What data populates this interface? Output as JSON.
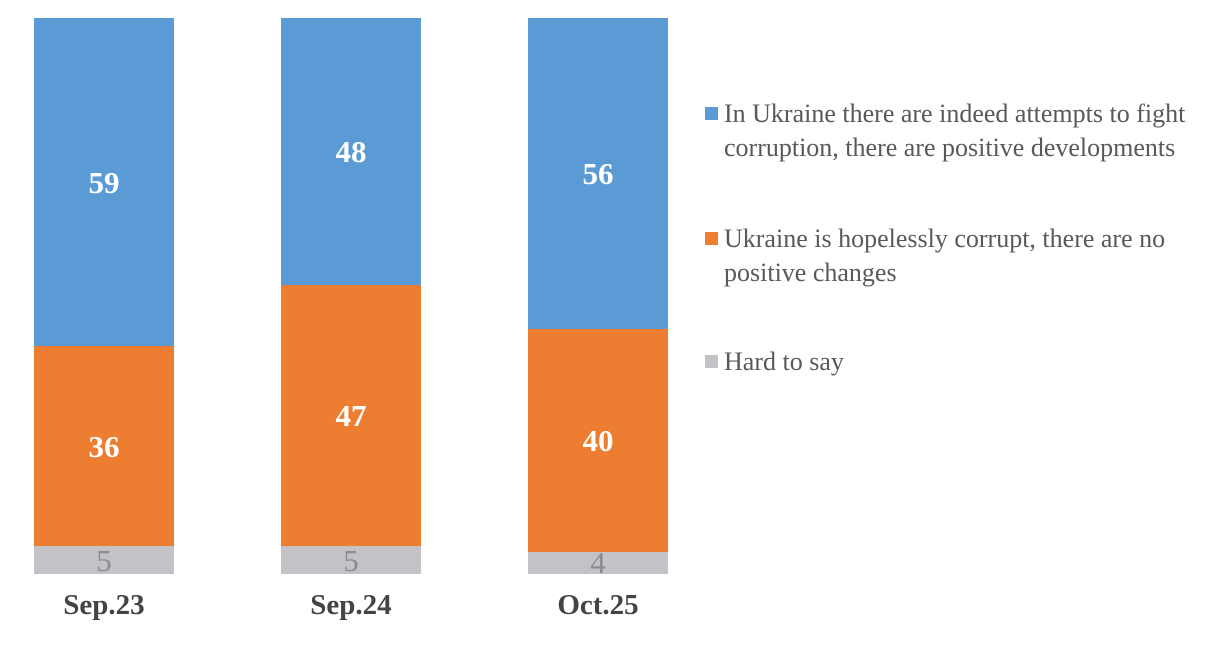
{
  "colors": {
    "background": "#FFFFFF",
    "blue": "#5B9BD5",
    "orange": "#ED7D31",
    "gray": "#C3C2C6",
    "white_label": "#FFFFFF",
    "gray_label": "#8C8B8F",
    "legend_text": "#595959",
    "axis_text": "#444444"
  },
  "chart_data": {
    "type": "bar",
    "variant": "stacked-100-percent-column",
    "title": "",
    "xlabel": "",
    "ylabel": "",
    "ylim": [
      0,
      100
    ],
    "grid": false,
    "legend_position": "right",
    "data_labels": true,
    "categories": [
      "Sep.23",
      "Sep.24",
      "Oct.25"
    ],
    "series": [
      {
        "name": "In Ukraine there are indeed attempts to fight corruption, there are positive developments",
        "values": [
          59,
          48,
          56
        ],
        "color": "#5B9BD5",
        "label_color": "#FFFFFF"
      },
      {
        "name": "Ukraine is hopelessly corrupt, there are no positive changes",
        "values": [
          36,
          47,
          40
        ],
        "color": "#ED7D31",
        "label_color": "#FFFFFF"
      },
      {
        "name": "Hard to say",
        "values": [
          5,
          5,
          4
        ],
        "color": "#C3C2C6",
        "label_color": "#8C8B8F"
      }
    ]
  }
}
